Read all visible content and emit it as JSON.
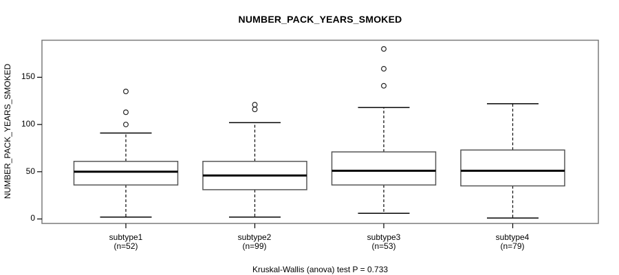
{
  "colors": {
    "background": "#ffffff",
    "line": "#000000",
    "frame": "#7a7a7a",
    "box_stroke": "#555555"
  },
  "chart_data": {
    "type": "boxplot",
    "title": "NUMBER_PACK_YEARS_SMOKED",
    "xlabel": "",
    "ylabel": "NUMBER_PACK_YEARS_SMOKED",
    "yticks": [
      0,
      50,
      100,
      150
    ],
    "ylim": [
      -5,
      189
    ],
    "grid": false,
    "annotation": "Kruskal-Wallis (anova) test P = 0.733",
    "groups": [
      {
        "label": "subtype1",
        "n_label": "(n=52)",
        "n": 52,
        "whisker_low": 2,
        "q1": 36,
        "median": 50,
        "q3": 61,
        "whisker_high": 91,
        "outliers": [
          100,
          113,
          135
        ]
      },
      {
        "label": "subtype2",
        "n_label": "(n=99)",
        "n": 99,
        "whisker_low": 2,
        "q1": 31,
        "median": 46,
        "q3": 61,
        "whisker_high": 102,
        "outliers": [
          116,
          121
        ]
      },
      {
        "label": "subtype3",
        "n_label": "(n=53)",
        "n": 53,
        "whisker_low": 6,
        "q1": 36,
        "median": 51,
        "q3": 71,
        "whisker_high": 118,
        "outliers": [
          141,
          159,
          180
        ]
      },
      {
        "label": "subtype4",
        "n_label": "(n=79)",
        "n": 79,
        "whisker_low": 1,
        "q1": 35,
        "median": 51,
        "q3": 73,
        "whisker_high": 122,
        "outliers": []
      }
    ]
  }
}
